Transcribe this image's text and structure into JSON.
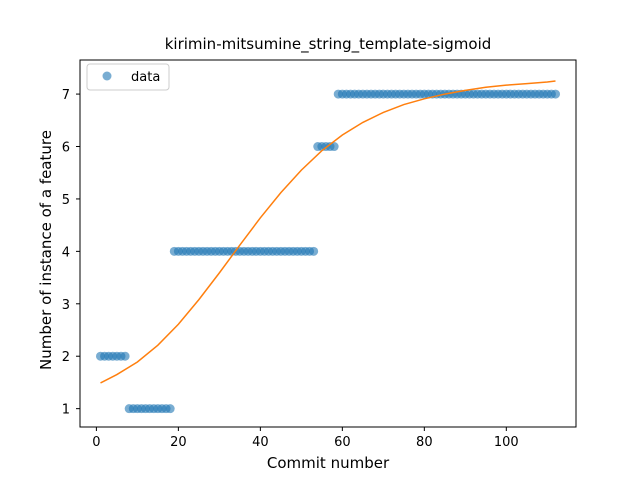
{
  "chart_data": {
    "type": "scatter",
    "title": "kirimin-mitsumine_string_template-sigmoid",
    "xlabel": "Commit number",
    "ylabel": "Number of instance of a feature",
    "xlim": [
      -4,
      117
    ],
    "ylim": [
      0.65,
      7.65
    ],
    "xticks": [
      0,
      20,
      40,
      60,
      80,
      100
    ],
    "yticks": [
      1,
      2,
      3,
      4,
      5,
      6,
      7
    ],
    "grid": false,
    "legend": {
      "position": "top-left",
      "entries": [
        "data"
      ]
    },
    "series": [
      {
        "name": "data",
        "kind": "scatter",
        "color": "#1f77b4",
        "alpha": 0.6,
        "segments": [
          {
            "x_start": 1,
            "x_end": 7,
            "y": 2
          },
          {
            "x_start": 8,
            "x_end": 18,
            "y": 1
          },
          {
            "x_start": 19,
            "x_end": 53,
            "y": 4
          },
          {
            "x_start": 54,
            "x_end": 58,
            "y": 6
          },
          {
            "x_start": 59,
            "x_end": 112,
            "y": 7
          }
        ]
      },
      {
        "kind": "line",
        "color": "#ff7f0e",
        "x": [
          1,
          5,
          10,
          15,
          20,
          25,
          30,
          35,
          40,
          45,
          50,
          55,
          60,
          65,
          70,
          75,
          80,
          85,
          90,
          95,
          100,
          105,
          110,
          112
        ],
        "y": [
          1.49,
          1.65,
          1.89,
          2.21,
          2.61,
          3.08,
          3.59,
          4.12,
          4.64,
          5.12,
          5.55,
          5.92,
          6.22,
          6.46,
          6.65,
          6.8,
          6.91,
          7.0,
          7.07,
          7.13,
          7.17,
          7.2,
          7.23,
          7.25
        ]
      }
    ]
  },
  "colors": {
    "scatter": "#1f77b4",
    "fit_line": "#ff7f0e",
    "axes": "#000000",
    "legend_border": "#cccccc"
  }
}
